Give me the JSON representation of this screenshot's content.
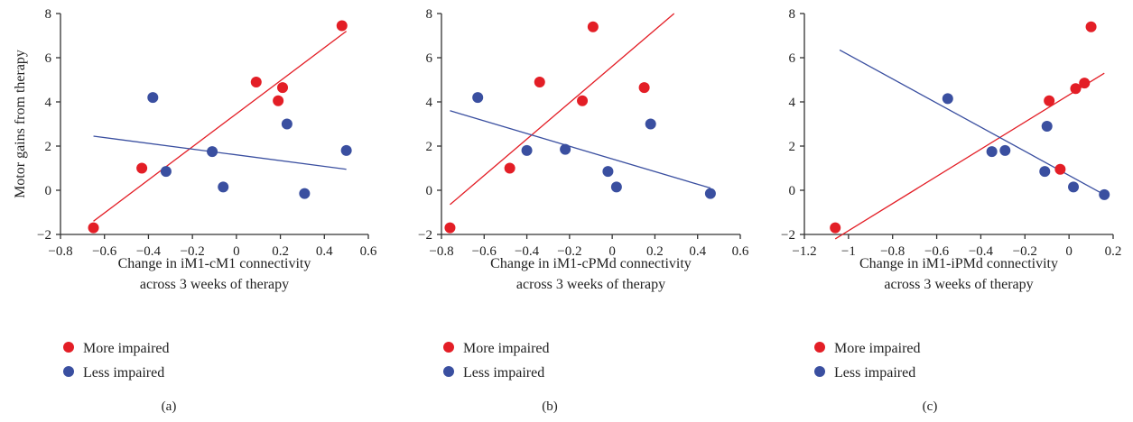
{
  "colors": {
    "more": "#e31e26",
    "less": "#3a4fa0",
    "axis": "#333333"
  },
  "chart_data": [
    {
      "type": "scatter",
      "panel_label": "(a)",
      "xlabel": [
        "Change in iM1-cM1 connectivity",
        "across 3 weeks of therapy"
      ],
      "ylabel": "Motor gains from therapy",
      "xlim": [
        -0.8,
        0.6
      ],
      "ylim": [
        -2,
        8
      ],
      "xticks": [
        -0.8,
        -0.6,
        -0.4,
        -0.2,
        0,
        0.2,
        0.4,
        0.6
      ],
      "xtick_labels": [
        "−0.8",
        "−0.6",
        "−0.4",
        "−0.2",
        "0",
        "0.2",
        "0.4",
        "0.6"
      ],
      "yticks": [
        -2,
        0,
        2,
        4,
        6,
        8
      ],
      "ytick_labels": [
        "−2",
        "0",
        "2",
        "4",
        "6",
        "8"
      ],
      "series": [
        {
          "name": "More impaired",
          "color": "#e31e26",
          "points": [
            [
              -0.65,
              -1.7
            ],
            [
              -0.43,
              1.0
            ],
            [
              0.09,
              4.9
            ],
            [
              0.19,
              4.05
            ],
            [
              0.21,
              4.65
            ],
            [
              0.48,
              7.45
            ]
          ],
          "fit": [
            [
              -0.65,
              -1.4
            ],
            [
              0.5,
              7.2
            ]
          ]
        },
        {
          "name": "Less impaired",
          "color": "#3a4fa0",
          "points": [
            [
              -0.38,
              4.2
            ],
            [
              -0.32,
              0.85
            ],
            [
              -0.11,
              1.75
            ],
            [
              -0.06,
              0.15
            ],
            [
              0.23,
              3.0
            ],
            [
              0.31,
              -0.15
            ],
            [
              0.5,
              1.8
            ]
          ],
          "fit": [
            [
              -0.65,
              2.45
            ],
            [
              0.5,
              0.95
            ]
          ]
        }
      ]
    },
    {
      "type": "scatter",
      "panel_label": "(b)",
      "xlabel": [
        "Change in iM1-cPMd connectivity",
        "across 3 weeks of therapy"
      ],
      "ylabel": "",
      "xlim": [
        -0.8,
        0.6
      ],
      "ylim": [
        -2,
        8
      ],
      "xticks": [
        -0.8,
        -0.6,
        -0.4,
        -0.2,
        0,
        0.2,
        0.4,
        0.6
      ],
      "xtick_labels": [
        "−0.8",
        "−0.6",
        "−0.4",
        "−0.2",
        "0",
        "0.2",
        "0.4",
        "0.6"
      ],
      "yticks": [
        -2,
        0,
        2,
        4,
        6,
        8
      ],
      "ytick_labels": [
        "−2",
        "0",
        "2",
        "4",
        "6",
        "8"
      ],
      "series": [
        {
          "name": "More impaired",
          "color": "#e31e26",
          "points": [
            [
              -0.76,
              -1.7
            ],
            [
              -0.48,
              1.0
            ],
            [
              -0.34,
              4.9
            ],
            [
              -0.14,
              4.05
            ],
            [
              -0.09,
              7.4
            ],
            [
              0.15,
              4.65
            ]
          ],
          "fit": [
            [
              -0.76,
              -0.65
            ],
            [
              0.29,
              8.0
            ]
          ]
        },
        {
          "name": "Less impaired",
          "color": "#3a4fa0",
          "points": [
            [
              -0.63,
              4.2
            ],
            [
              -0.4,
              1.8
            ],
            [
              -0.22,
              1.85
            ],
            [
              -0.02,
              0.85
            ],
            [
              0.02,
              0.15
            ],
            [
              0.18,
              3.0
            ],
            [
              0.46,
              -0.15
            ]
          ],
          "fit": [
            [
              -0.76,
              3.6
            ],
            [
              0.46,
              0.1
            ]
          ]
        }
      ]
    },
    {
      "type": "scatter",
      "panel_label": "(c)",
      "xlabel": [
        "Change in iM1-iPMd connectivity",
        "across 3 weeks of therapy"
      ],
      "ylabel": "",
      "xlim": [
        -1.2,
        0.2
      ],
      "ylim": [
        -2,
        8
      ],
      "xticks": [
        -1.2,
        -1,
        -0.8,
        -0.6,
        -0.4,
        -0.2,
        0,
        0.2
      ],
      "xtick_labels": [
        "−1.2",
        "−1",
        "−0.8",
        "−0.6",
        "−0.4",
        "−0.2",
        "0",
        "0.2"
      ],
      "yticks": [
        -2,
        0,
        2,
        4,
        6,
        8
      ],
      "ytick_labels": [
        "−2",
        "0",
        "2",
        "4",
        "6",
        "8"
      ],
      "series": [
        {
          "name": "More impaired",
          "color": "#e31e26",
          "points": [
            [
              -1.06,
              -1.7
            ],
            [
              -0.09,
              4.05
            ],
            [
              -0.04,
              0.95
            ],
            [
              0.03,
              4.6
            ],
            [
              0.07,
              4.85
            ],
            [
              0.1,
              7.4
            ]
          ],
          "fit": [
            [
              -1.06,
              -2.2
            ],
            [
              0.16,
              5.3
            ]
          ]
        },
        {
          "name": "Less impaired",
          "color": "#3a4fa0",
          "points": [
            [
              -0.55,
              4.15
            ],
            [
              -0.35,
              1.75
            ],
            [
              -0.29,
              1.8
            ],
            [
              -0.11,
              0.85
            ],
            [
              -0.1,
              2.9
            ],
            [
              0.02,
              0.15
            ],
            [
              0.16,
              -0.2
            ]
          ],
          "fit": [
            [
              -1.04,
              6.35
            ],
            [
              0.16,
              -0.2
            ]
          ]
        }
      ]
    }
  ]
}
